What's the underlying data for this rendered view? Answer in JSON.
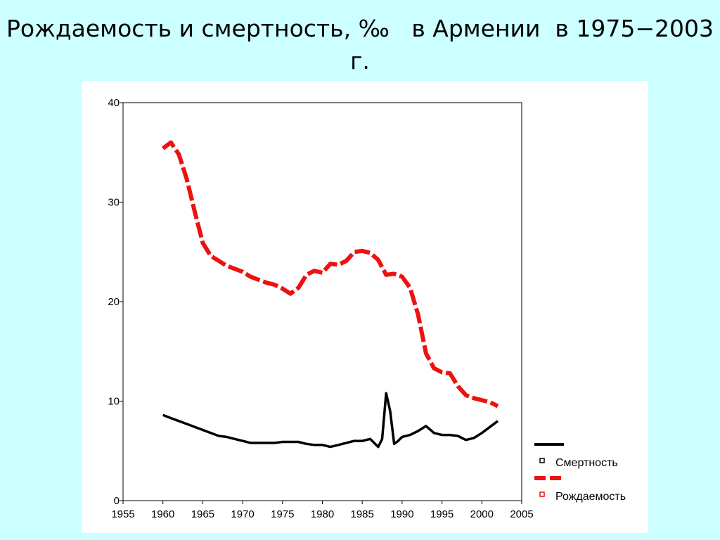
{
  "slide": {
    "title_line1": "Рождаемость и смертность, ‰   в Армении  в 1975−2003",
    "title_line2": "г."
  },
  "chart_data": {
    "type": "line",
    "title": "Рождаемость и смертность, ‰ в Армении в 1975−2003 г.",
    "xlabel": "",
    "ylabel": "",
    "xlim": [
      1955,
      2005
    ],
    "ylim": [
      0,
      40
    ],
    "x_ticks": [
      1955,
      1960,
      1965,
      1970,
      1975,
      1980,
      1985,
      1990,
      1995,
      2000,
      2005
    ],
    "y_ticks": [
      0,
      10,
      20,
      30,
      40
    ],
    "grid": false,
    "legend_position": "bottom-right, outside plot",
    "series": [
      {
        "name": "Смертность",
        "color": "#000000",
        "style": "solid",
        "x": [
          1960,
          1961,
          1962,
          1963,
          1964,
          1965,
          1966,
          1967,
          1968,
          1969,
          1970,
          1971,
          1972,
          1973,
          1974,
          1975,
          1976,
          1977,
          1978,
          1979,
          1980,
          1981,
          1982,
          1983,
          1984,
          1985,
          1986,
          1987,
          1987.5,
          1988,
          1988.5,
          1989,
          1989.5,
          1990,
          1991,
          1992,
          1993,
          1994,
          1995,
          1996,
          1997,
          1998,
          1999,
          2000,
          2001,
          2002
        ],
        "values": [
          8.6,
          8.3,
          8.0,
          7.7,
          7.4,
          7.1,
          6.8,
          6.5,
          6.4,
          6.2,
          6.0,
          5.8,
          5.8,
          5.8,
          5.8,
          5.9,
          5.9,
          5.9,
          5.7,
          5.6,
          5.6,
          5.4,
          5.6,
          5.8,
          6.0,
          6.0,
          6.2,
          5.4,
          6.2,
          10.8,
          9.0,
          5.7,
          6.0,
          6.4,
          6.6,
          7.0,
          7.5,
          6.8,
          6.6,
          6.6,
          6.5,
          6.1,
          6.3,
          6.8,
          7.4,
          8.0
        ]
      },
      {
        "name": "Рождаемость",
        "color": "#ee1111",
        "style": "dashed",
        "x": [
          1960,
          1961,
          1962,
          1963,
          1964,
          1965,
          1966,
          1967,
          1968,
          1969,
          1970,
          1971,
          1972,
          1973,
          1974,
          1975,
          1976,
          1977,
          1978,
          1979,
          1980,
          1981,
          1982,
          1983,
          1984,
          1985,
          1986,
          1987,
          1988,
          1989,
          1990,
          1991,
          1992,
          1993,
          1994,
          1995,
          1996,
          1997,
          1998,
          1999,
          2000,
          2001,
          2002
        ],
        "values": [
          35.4,
          36.0,
          34.8,
          32.3,
          29.0,
          25.9,
          24.6,
          24.1,
          23.6,
          23.3,
          23.0,
          22.5,
          22.2,
          21.9,
          21.7,
          21.3,
          20.8,
          21.4,
          22.7,
          23.1,
          22.9,
          23.8,
          23.7,
          24.1,
          25.0,
          25.1,
          24.9,
          24.2,
          22.7,
          22.8,
          22.5,
          21.4,
          18.7,
          14.8,
          13.3,
          12.9,
          12.8,
          11.5,
          10.6,
          10.3,
          10.1,
          9.9,
          9.5
        ]
      }
    ]
  }
}
